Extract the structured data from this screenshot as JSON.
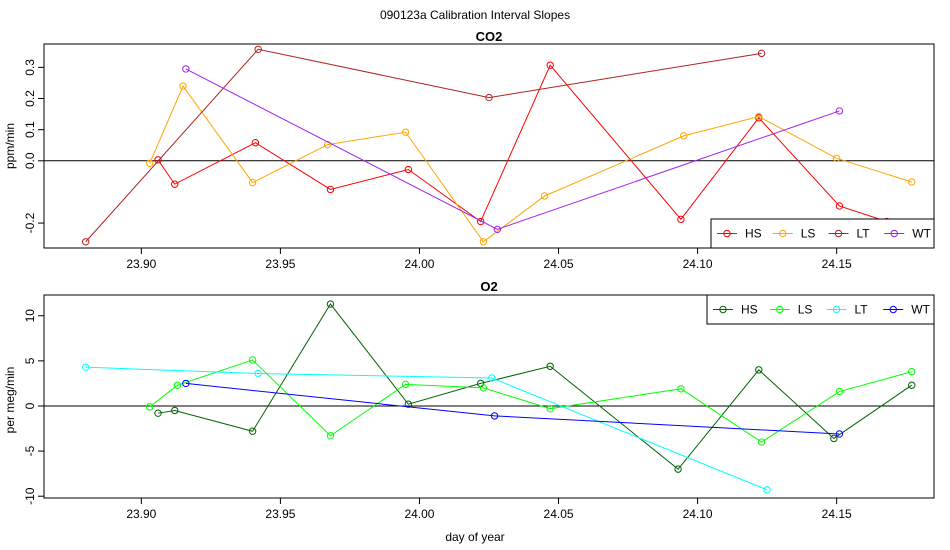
{
  "figure_title": "090123a   Calibration Interval Slopes",
  "chart_data": [
    {
      "type": "line",
      "title": "CO2",
      "xlabel": "",
      "ylabel": "ppm/min",
      "xlim": [
        23.865,
        24.185
      ],
      "ylim": [
        -0.28,
        0.375
      ],
      "xticks": [
        23.9,
        23.95,
        24.0,
        24.05,
        24.1,
        24.15
      ],
      "xtick_labels": [
        "23.90",
        "23.95",
        "24.00",
        "24.05",
        "24.10",
        "24.15"
      ],
      "yticks": [
        -0.2,
        0.0,
        0.1,
        0.2,
        0.3
      ],
      "ytick_labels": [
        "-0.2",
        "0.0",
        "0.1",
        "0.2",
        "0.3"
      ],
      "zero_line": true,
      "legend_position": "bottom-right",
      "series": [
        {
          "name": "HS",
          "color": "#ff0000",
          "x": [
            23.906,
            23.912,
            23.941,
            23.968,
            23.996,
            24.022,
            24.047,
            24.094,
            24.122,
            24.151,
            24.168
          ],
          "y": [
            0.003,
            -0.075,
            0.058,
            -0.092,
            -0.028,
            -0.195,
            0.307,
            -0.188,
            0.138,
            -0.145,
            -0.195
          ]
        },
        {
          "name": "LS",
          "color": "#ffa500",
          "x": [
            23.903,
            23.915,
            23.94,
            23.967,
            23.995,
            24.023,
            24.045,
            24.095,
            24.122,
            24.15,
            24.177
          ],
          "y": [
            -0.008,
            0.24,
            -0.07,
            0.052,
            0.092,
            -0.26,
            -0.113,
            0.08,
            0.142,
            0.008,
            -0.068
          ]
        },
        {
          "name": "LT",
          "color": "#b22222",
          "x": [
            23.88,
            23.942,
            24.025,
            24.123
          ],
          "y": [
            -0.26,
            0.358,
            0.203,
            0.345
          ]
        },
        {
          "name": "WT",
          "color": "#a020f0",
          "x": [
            23.916,
            24.028,
            24.151
          ],
          "y": [
            0.295,
            -0.22,
            0.16
          ]
        }
      ]
    },
    {
      "type": "line",
      "title": "O2",
      "xlabel": "day of year",
      "ylabel": "per meg/min",
      "xlim": [
        23.865,
        24.185
      ],
      "ylim": [
        -10.2,
        12.3
      ],
      "xticks": [
        23.9,
        23.95,
        24.0,
        24.05,
        24.1,
        24.15
      ],
      "xtick_labels": [
        "23.90",
        "23.95",
        "24.00",
        "24.05",
        "24.10",
        "24.15"
      ],
      "yticks": [
        -10,
        -5,
        0,
        5,
        10
      ],
      "ytick_labels": [
        "-10",
        "-5",
        "0",
        "5",
        "10"
      ],
      "zero_line": true,
      "legend_position": "top-right",
      "series": [
        {
          "name": "HS",
          "color": "#006400",
          "x": [
            23.906,
            23.912,
            23.94,
            23.968,
            23.996,
            24.022,
            24.047,
            24.093,
            24.122,
            24.149,
            24.177
          ],
          "y": [
            -0.8,
            -0.5,
            -2.8,
            11.3,
            0.2,
            2.5,
            4.4,
            -7.0,
            4.0,
            -3.6,
            2.3
          ]
        },
        {
          "name": "LS",
          "color": "#00ff00",
          "x": [
            23.903,
            23.913,
            23.94,
            23.968,
            23.995,
            24.023,
            24.047,
            24.094,
            24.123,
            24.151,
            24.177
          ],
          "y": [
            -0.1,
            2.3,
            5.1,
            -3.3,
            2.4,
            2.0,
            -0.3,
            1.9,
            -4.0,
            1.6,
            3.8
          ]
        },
        {
          "name": "LT",
          "color": "#00ffff",
          "x": [
            23.88,
            23.942,
            24.026,
            24.125
          ],
          "y": [
            4.3,
            3.6,
            3.1,
            -9.3
          ]
        },
        {
          "name": "WT",
          "color": "#0000ff",
          "x": [
            23.916,
            24.027,
            24.151
          ],
          "y": [
            2.5,
            -1.1,
            -3.1
          ]
        }
      ]
    }
  ]
}
